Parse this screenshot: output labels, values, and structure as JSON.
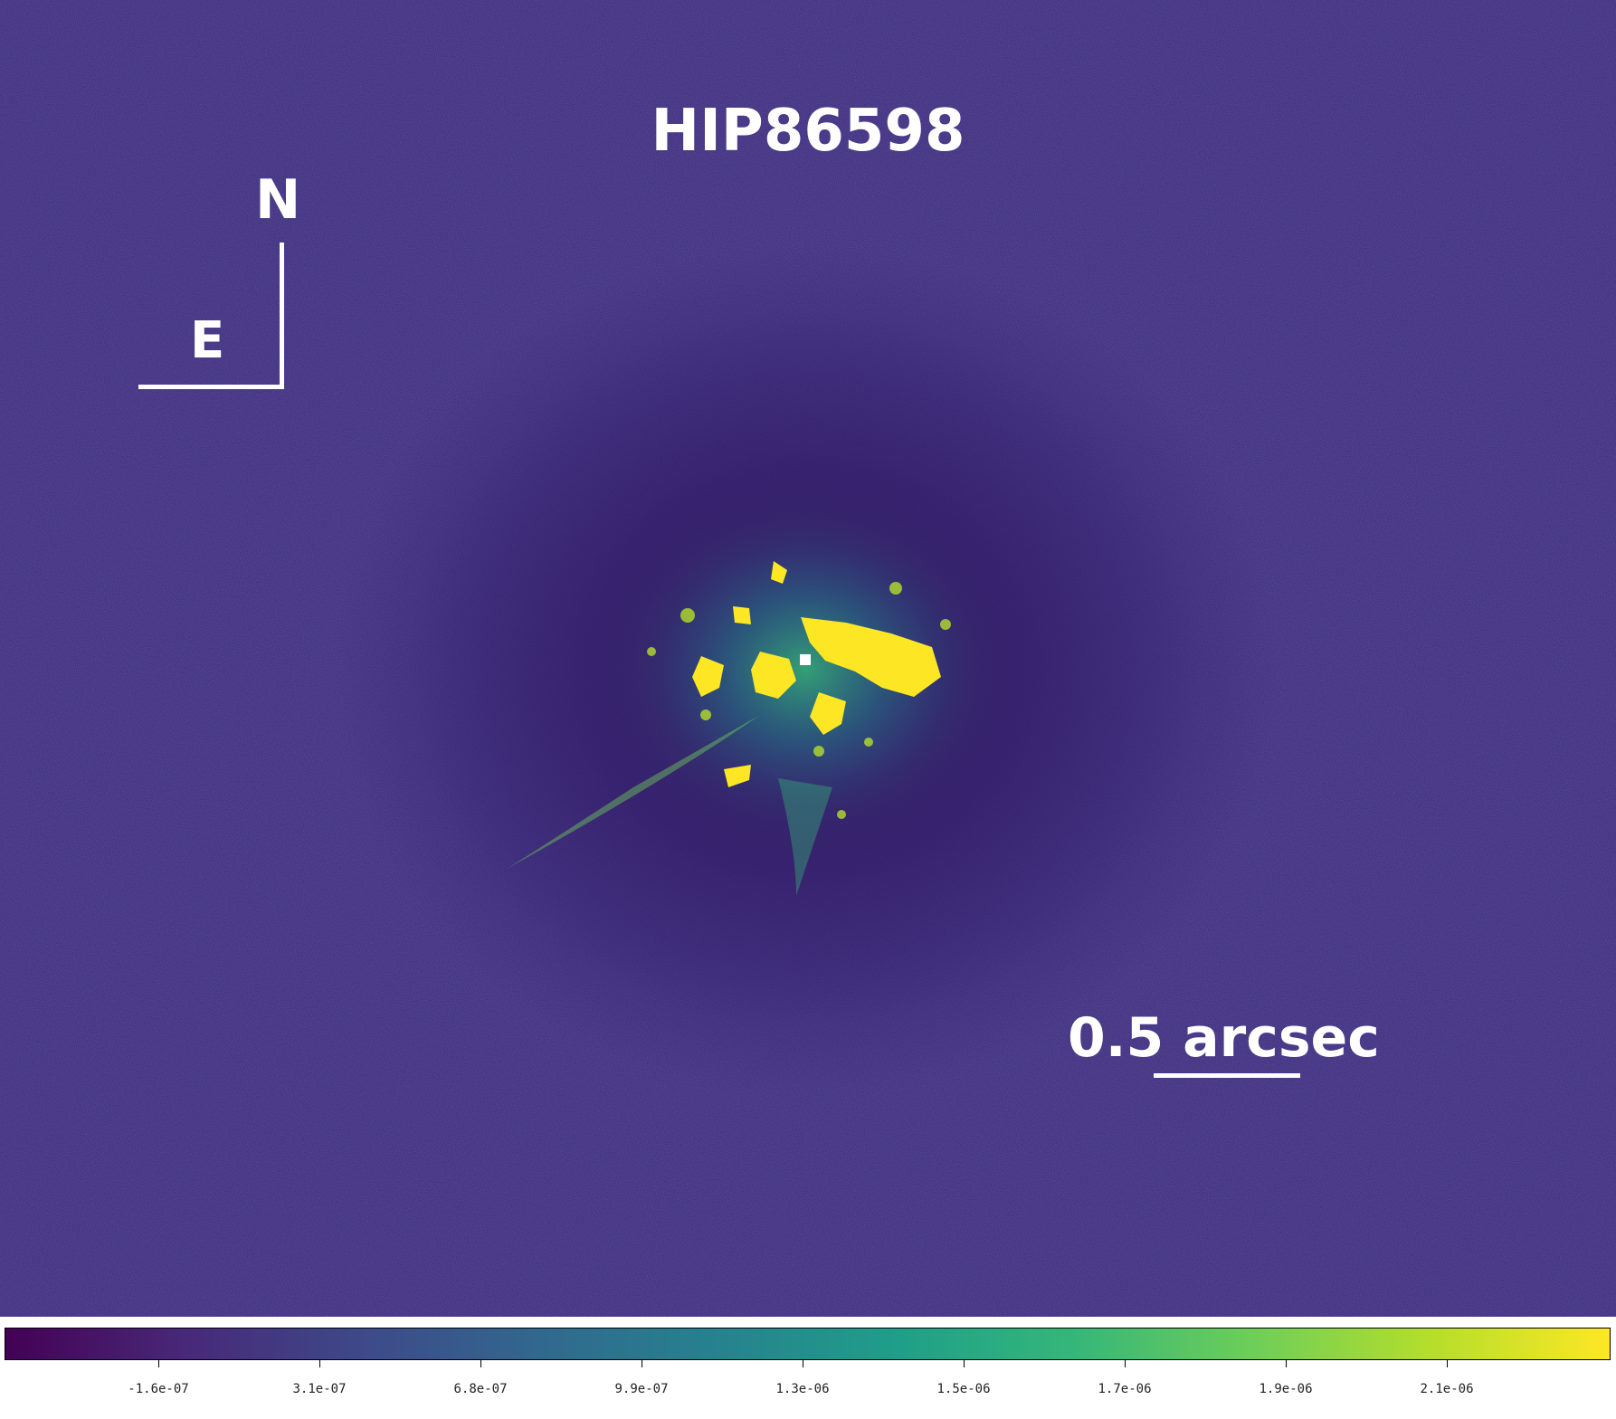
{
  "figure": {
    "title": "HIP86598",
    "compass": {
      "north": "N",
      "east": "E"
    },
    "scale_bar": {
      "label": "0.5 arcsec"
    }
  },
  "colorbar": {
    "colormap": "viridis",
    "colors": [
      "#440154",
      "#482878",
      "#3e4989",
      "#31688e",
      "#26828e",
      "#1f9e89",
      "#35b779",
      "#6ece58",
      "#b5de2b",
      "#fde725"
    ],
    "ticks": [
      "-1.6e-07",
      "3.1e-07",
      "6.8e-07",
      "9.9e-07",
      "1.3e-06",
      "1.5e-06",
      "1.7e-06",
      "1.9e-06",
      "2.1e-06"
    ]
  }
}
